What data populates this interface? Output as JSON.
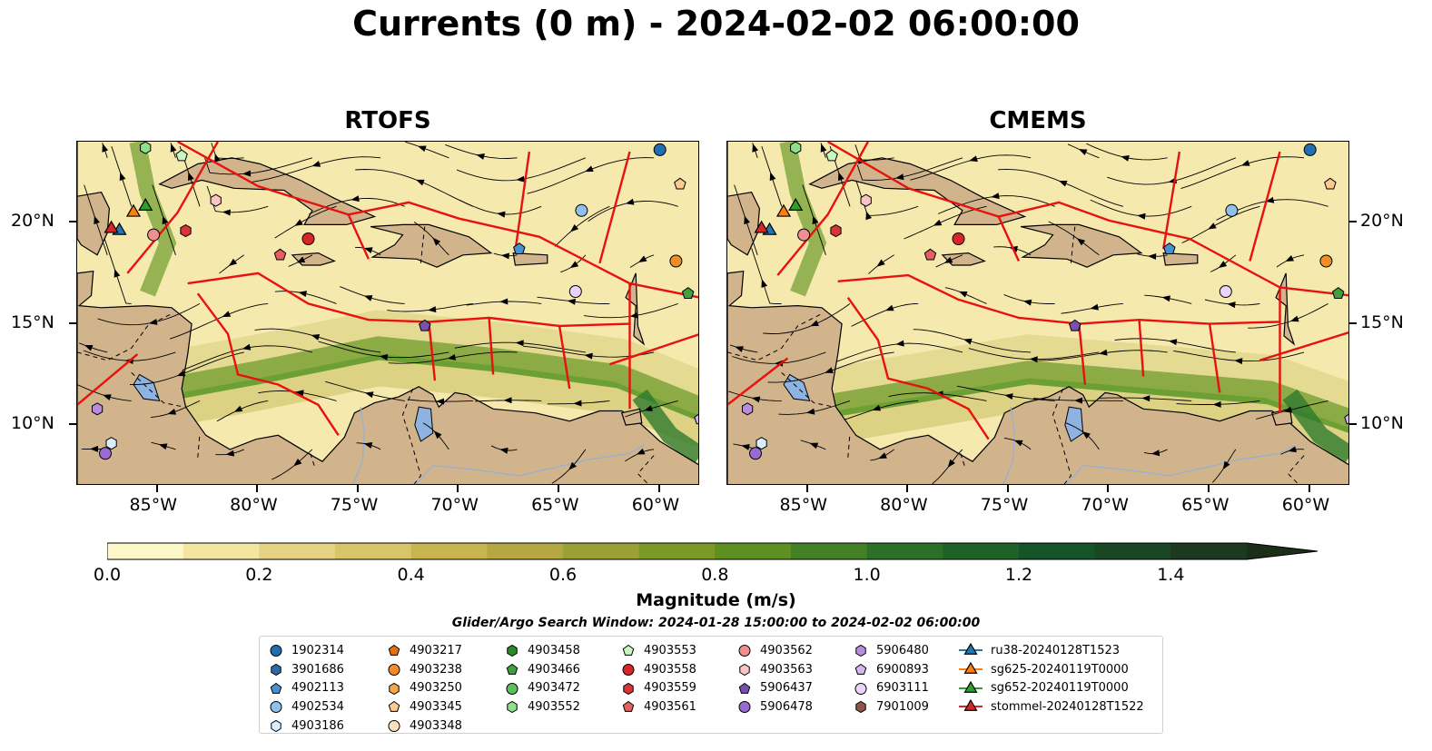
{
  "title": "Currents (0 m) - 2024-02-02 06:00:00",
  "panels": [
    {
      "name": "RTOFS"
    },
    {
      "name": "CMEMS"
    }
  ],
  "chart_data": {
    "type": "heatmap",
    "title": "Currents (0 m) - 2024-02-02 06:00:00",
    "subplots": [
      "RTOFS",
      "CMEMS"
    ],
    "x_ticks": [
      "85°W",
      "80°W",
      "75°W",
      "70°W",
      "65°W",
      "60°W"
    ],
    "y_ticks": [
      "20°N",
      "15°N",
      "10°N"
    ],
    "x_tick_values": [
      -85,
      -80,
      -75,
      -70,
      -65,
      -60
    ],
    "y_tick_values": [
      20,
      15,
      10
    ],
    "xlim": [
      -89,
      -58
    ],
    "ylim": [
      7,
      24
    ],
    "colorbar": {
      "label": "Magnitude (m/s)",
      "ticks": [
        "0.0",
        "0.2",
        "0.4",
        "0.6",
        "0.8",
        "1.0",
        "1.2",
        "1.4"
      ],
      "tick_values": [
        0.0,
        0.2,
        0.4,
        0.6,
        0.8,
        1.0,
        1.2,
        1.4
      ],
      "range": [
        0,
        1.5
      ],
      "extend": "max",
      "colors": [
        "#fdf8c7",
        "#f2e6a0",
        "#e5d384",
        "#d8c56a",
        "#c9b550",
        "#b5a842",
        "#9aa034",
        "#7b9a25",
        "#5e8f21",
        "#437f23",
        "#2c6f27",
        "#1d6328",
        "#155428",
        "#1a4624",
        "#1b3a1f",
        "#1c2e18"
      ]
    },
    "search_window": "Glider/Argo Search Window: 2024-01-28 15:00:00 to 2024-02-02 06:00:00",
    "legend_placement": "bottom-center",
    "legend": [
      {
        "label": "1902314",
        "marker": "circle",
        "color": "#1f6fb4"
      },
      {
        "label": "3901686",
        "marker": "hexagon",
        "color": "#2e6aa8"
      },
      {
        "label": "4902113",
        "marker": "pentagon",
        "color": "#4a90d0"
      },
      {
        "label": "4902534",
        "marker": "circle",
        "color": "#8fc0ea"
      },
      {
        "label": "4903186",
        "marker": "hexagon",
        "color": "#d8eefc"
      },
      {
        "label": "4903217",
        "marker": "pentagon",
        "color": "#e3700d"
      },
      {
        "label": "4903238",
        "marker": "circle",
        "color": "#f08c2a"
      },
      {
        "label": "4903250",
        "marker": "hexagon",
        "color": "#f5a54a"
      },
      {
        "label": "4903345",
        "marker": "pentagon",
        "color": "#fcc98f"
      },
      {
        "label": "4903348",
        "marker": "circle",
        "color": "#fde0c0"
      },
      {
        "label": "4903458",
        "marker": "hexagon",
        "color": "#2a8a2a"
      },
      {
        "label": "4903466",
        "marker": "pentagon",
        "color": "#3fa23f"
      },
      {
        "label": "4903472",
        "marker": "circle",
        "color": "#5cc15c"
      },
      {
        "label": "4903552",
        "marker": "hexagon",
        "color": "#8ee08e"
      },
      {
        "label": "4903553",
        "marker": "pentagon",
        "color": "#c8f5c0"
      },
      {
        "label": "4903558",
        "marker": "circle",
        "color": "#d62728"
      },
      {
        "label": "4903559",
        "marker": "hexagon",
        "color": "#d9343a"
      },
      {
        "label": "4903561",
        "marker": "pentagon",
        "color": "#e36060"
      },
      {
        "label": "4903562",
        "marker": "circle",
        "color": "#f08f8f"
      },
      {
        "label": "4903563",
        "marker": "hexagon",
        "color": "#f9c4c4"
      },
      {
        "label": "5906437",
        "marker": "pentagon",
        "color": "#7b4fb0"
      },
      {
        "label": "5906478",
        "marker": "circle",
        "color": "#9b6ad0"
      },
      {
        "label": "5906480",
        "marker": "hexagon",
        "color": "#b88de0"
      },
      {
        "label": "6900893",
        "marker": "pentagon",
        "color": "#d4b5f0"
      },
      {
        "label": "6903111",
        "marker": "circle",
        "color": "#ead4fb"
      },
      {
        "label": "7901009",
        "marker": "hexagon",
        "color": "#8c564b"
      },
      {
        "label": "ru38-20240128T1523",
        "marker": "triangle-line",
        "color": "#1f77b4"
      },
      {
        "label": "sg625-20240119T0000",
        "marker": "triangle-line",
        "color": "#ff7f0e"
      },
      {
        "label": "sg652-20240119T0000",
        "marker": "triangle-line",
        "color": "#2ca02c"
      },
      {
        "label": "stommel-20240128T1522",
        "marker": "triangle-line",
        "color": "#d62728"
      }
    ],
    "observations": [
      {
        "id": "1902314",
        "lon": -60.0,
        "lat": 23.6
      },
      {
        "id": "4902534",
        "lon": -63.9,
        "lat": 20.6
      },
      {
        "id": "4902113",
        "lon": -67.0,
        "lat": 18.7
      },
      {
        "id": "4903238",
        "lon": -59.2,
        "lat": 18.1
      },
      {
        "id": "4903466",
        "lon": -58.6,
        "lat": 16.5
      },
      {
        "id": "6903111",
        "lon": -64.2,
        "lat": 16.6
      },
      {
        "id": "5906437",
        "lon": -71.7,
        "lat": 14.9
      },
      {
        "id": "4903558",
        "lon": -77.5,
        "lat": 19.2
      },
      {
        "id": "4903559",
        "lon": -83.6,
        "lat": 19.6
      },
      {
        "id": "4903562",
        "lon": -85.2,
        "lat": 19.4
      },
      {
        "id": "4903563",
        "lon": -82.1,
        "lat": 21.1
      },
      {
        "id": "4903561",
        "lon": -78.9,
        "lat": 18.4
      },
      {
        "id": "4903345",
        "lon": -59.0,
        "lat": 21.9
      },
      {
        "id": "4903552",
        "lon": -85.6,
        "lat": 23.7
      },
      {
        "id": "4903553",
        "lon": -83.8,
        "lat": 23.3
      },
      {
        "id": "5906480",
        "lon": -88.0,
        "lat": 10.8
      },
      {
        "id": "5906478",
        "lon": -87.6,
        "lat": 8.6
      },
      {
        "id": "4903186",
        "lon": -87.3,
        "lat": 9.1
      },
      {
        "id": "6900893",
        "lon": -58.0,
        "lat": 10.3
      },
      {
        "id": "ru38-20240128T1523",
        "lon": -86.9,
        "lat": 19.6
      },
      {
        "id": "sg625-20240119T0000",
        "lon": -86.2,
        "lat": 20.5
      },
      {
        "id": "sg652-20240119T0000",
        "lon": -85.6,
        "lat": 20.8
      },
      {
        "id": "stommel-20240128T1522",
        "lon": -87.3,
        "lat": 19.7
      }
    ]
  }
}
